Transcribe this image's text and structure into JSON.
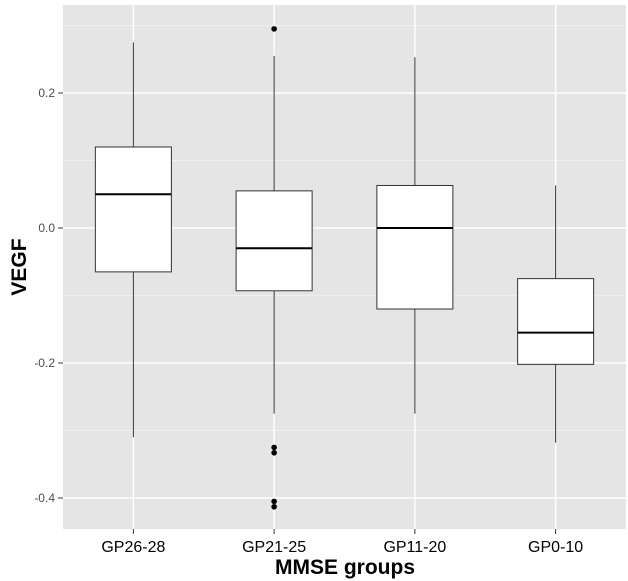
{
  "chart_data": {
    "type": "box",
    "title": "",
    "xlabel": "MMSE groups",
    "ylabel": "VEGF",
    "ylim": [
      -0.45,
      0.33
    ],
    "y_ticks": [
      {
        "value": 0.2,
        "label": "0.2"
      },
      {
        "value": 0.0,
        "label": "0.0"
      },
      {
        "value": -0.2,
        "label": "-0.2"
      },
      {
        "value": -0.4,
        "label": "-0.4"
      }
    ],
    "categories": [
      "GP26-28",
      "GP21-25",
      "GP11-20",
      "GP0-10"
    ],
    "boxes": [
      {
        "category": "GP26-28",
        "whisker_low": -0.31,
        "q1": -0.065,
        "median": 0.05,
        "q3": 0.12,
        "whisker_high": 0.275,
        "outliers": []
      },
      {
        "category": "GP21-25",
        "whisker_low": -0.275,
        "q1": -0.093,
        "median": -0.03,
        "q3": 0.055,
        "whisker_high": 0.255,
        "outliers": [
          0.295,
          -0.325,
          -0.333,
          -0.405,
          -0.413
        ]
      },
      {
        "category": "GP11-20",
        "whisker_low": -0.275,
        "q1": -0.12,
        "median": 0.0,
        "q3": 0.063,
        "whisker_high": 0.253,
        "outliers": []
      },
      {
        "category": "GP0-10",
        "whisker_low": -0.318,
        "q1": -0.202,
        "median": -0.155,
        "q3": -0.075,
        "whisker_high": 0.063,
        "outliers": []
      }
    ],
    "grid": true,
    "colors": {
      "panel": "#e5e5e5",
      "grid_major": "#ffffff",
      "grid_minor": "#f2f2f2",
      "box_fill": "#ffffff",
      "box_stroke": "#333333",
      "whisker": "#333333",
      "outlier": "#000000"
    }
  }
}
